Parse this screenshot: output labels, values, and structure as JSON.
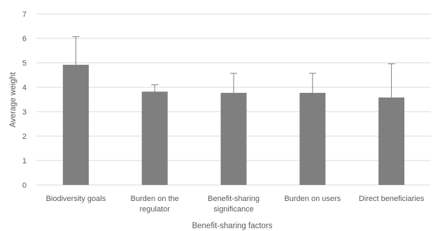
{
  "chart_data": {
    "type": "bar",
    "title": "",
    "xlabel": "Benefit-sharing factors",
    "ylabel": "Average weight",
    "ylim": [
      0,
      7
    ],
    "yticks": [
      0,
      1,
      2,
      3,
      4,
      5,
      6,
      7
    ],
    "grid": true,
    "legend": "none",
    "categories": [
      [
        "Biodiversity goals"
      ],
      [
        "Burden on the",
        "regulator"
      ],
      [
        "Benefit-sharing",
        "significance"
      ],
      [
        "Burden on users"
      ],
      [
        "Direct beneficiaries"
      ]
    ],
    "values": [
      4.92,
      3.82,
      3.77,
      3.77,
      3.58
    ],
    "error_upper": [
      1.15,
      0.28,
      0.8,
      0.8,
      1.38
    ],
    "colors": {
      "bar": "#7f7f7f",
      "gridline": "#d9d9d9",
      "error_bar": "#7f7f7f",
      "text": "#595959"
    }
  }
}
